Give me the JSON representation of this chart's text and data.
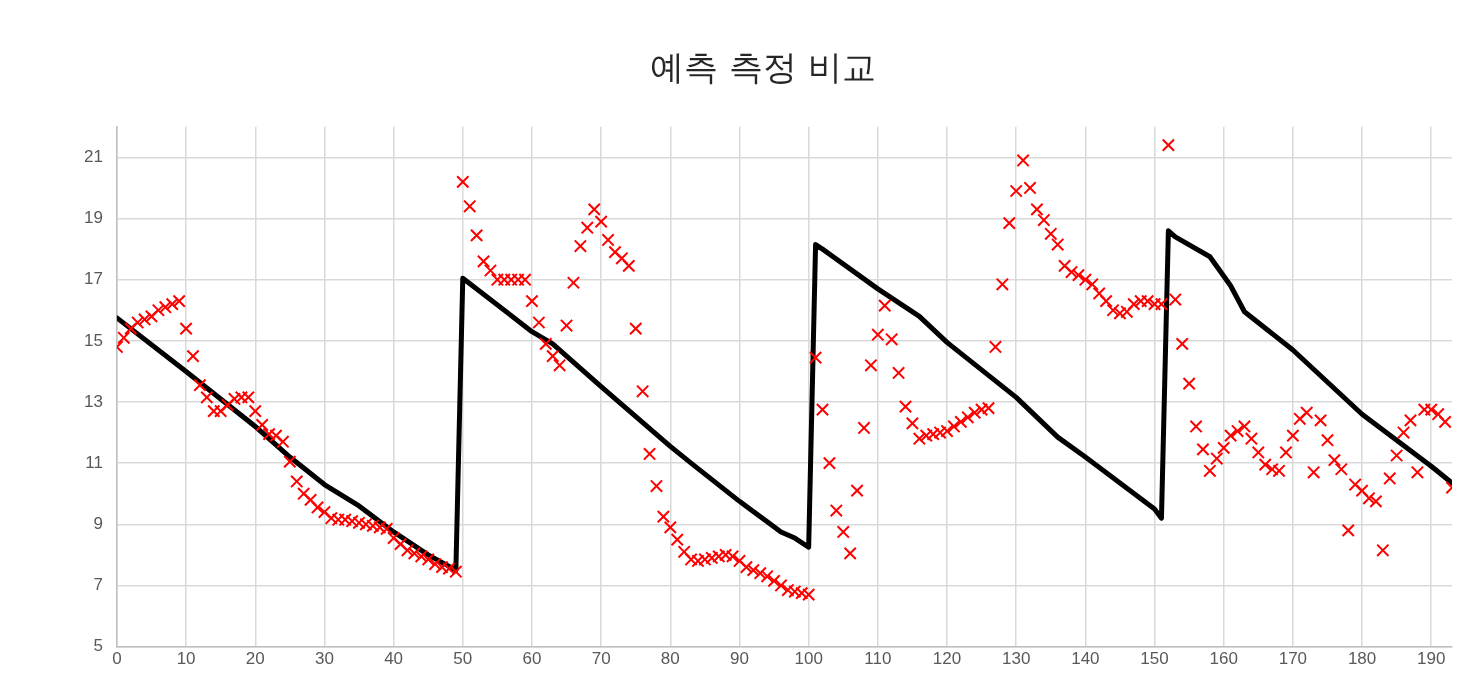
{
  "chart_data": {
    "type": "scatter",
    "title": "예측 측정 비교",
    "xlim": [
      0,
      193
    ],
    "xticks": [
      0,
      10,
      20,
      30,
      40,
      50,
      60,
      70,
      80,
      90,
      100,
      110,
      120,
      130,
      140,
      150,
      160,
      170,
      180,
      190
    ],
    "ylim": [
      5,
      22
    ],
    "yticks": [
      5,
      7,
      9,
      11,
      13,
      15,
      17,
      19,
      21
    ],
    "grid": true,
    "legend": false,
    "series": [
      {
        "type": "scatter",
        "color": "#ff0000",
        "marker": "cross",
        "x": [
          0,
          1,
          2,
          3,
          4,
          5,
          6,
          7,
          8,
          9,
          10,
          11,
          12,
          13,
          14,
          15,
          16,
          17,
          18,
          19,
          20,
          21,
          22,
          23,
          24,
          25,
          26,
          27,
          28,
          29,
          30,
          31,
          32,
          33,
          34,
          35,
          36,
          37,
          38,
          39,
          40,
          41,
          42,
          43,
          44,
          45,
          46,
          47,
          48,
          49,
          50,
          51,
          52,
          53,
          54,
          55,
          56,
          57,
          58,
          59,
          60,
          61,
          62,
          63,
          64,
          65,
          66,
          67,
          68,
          69,
          70,
          71,
          72,
          73,
          74,
          75,
          76,
          77,
          78,
          79,
          80,
          81,
          82,
          83,
          84,
          85,
          86,
          87,
          88,
          89,
          90,
          91,
          92,
          93,
          94,
          95,
          96,
          97,
          98,
          99,
          100,
          101,
          102,
          103,
          104,
          105,
          106,
          107,
          108,
          109,
          110,
          111,
          112,
          113,
          114,
          115,
          116,
          117,
          118,
          119,
          120,
          121,
          122,
          123,
          124,
          125,
          126,
          127,
          128,
          129,
          130,
          131,
          132,
          133,
          134,
          135,
          136,
          137,
          138,
          139,
          140,
          141,
          142,
          143,
          144,
          145,
          146,
          147,
          148,
          149,
          150,
          151,
          152,
          153,
          154,
          155,
          156,
          157,
          158,
          159,
          160,
          161,
          162,
          163,
          164,
          165,
          166,
          167,
          168,
          169,
          170,
          171,
          172,
          173,
          174,
          175,
          176,
          177,
          178,
          179,
          180,
          181,
          182,
          183,
          184,
          185,
          186,
          187,
          188,
          189,
          190,
          191,
          192,
          193
        ],
        "values": [
          14.8,
          15.1,
          15.4,
          15.6,
          15.7,
          15.8,
          16.0,
          16.1,
          16.2,
          16.3,
          15.4,
          14.5,
          13.55,
          13.15,
          12.7,
          12.7,
          12.9,
          13.1,
          13.15,
          13.15,
          12.7,
          12.25,
          11.95,
          11.9,
          11.7,
          11.05,
          10.4,
          10.0,
          9.8,
          9.55,
          9.4,
          9.2,
          9.15,
          9.15,
          9.1,
          9.05,
          9.0,
          8.95,
          8.9,
          8.85,
          8.55,
          8.35,
          8.15,
          8.05,
          7.95,
          7.85,
          7.7,
          7.6,
          7.55,
          7.45,
          20.2,
          19.4,
          18.45,
          17.6,
          17.3,
          17.0,
          17.0,
          17.0,
          17.0,
          17.0,
          16.3,
          15.6,
          14.9,
          14.5,
          14.2,
          15.5,
          16.9,
          18.1,
          18.7,
          19.3,
          18.9,
          18.3,
          17.9,
          17.7,
          17.45,
          15.4,
          13.35,
          11.3,
          10.25,
          9.25,
          8.9,
          8.5,
          8.1,
          7.85,
          7.8,
          7.85,
          7.9,
          7.95,
          8.0,
          7.95,
          7.8,
          7.6,
          7.5,
          7.4,
          7.3,
          7.15,
          7.0,
          6.85,
          6.8,
          6.75,
          6.7,
          14.45,
          12.75,
          11.0,
          9.45,
          8.75,
          8.05,
          10.1,
          12.15,
          14.2,
          15.2,
          16.15,
          15.05,
          13.95,
          12.85,
          12.3,
          11.8,
          11.9,
          11.95,
          12.0,
          12.05,
          12.2,
          12.35,
          12.5,
          12.65,
          12.75,
          12.8,
          14.8,
          16.85,
          18.85,
          19.9,
          20.9,
          20.0,
          19.3,
          18.95,
          18.5,
          18.15,
          17.45,
          17.25,
          17.15,
          17.0,
          16.85,
          16.55,
          16.3,
          16.0,
          15.9,
          15.95,
          16.2,
          16.3,
          16.3,
          16.2,
          16.2,
          21.4,
          16.35,
          14.9,
          13.6,
          12.2,
          11.45,
          10.75,
          11.15,
          11.5,
          11.9,
          12.05,
          12.2,
          11.8,
          11.35,
          10.95,
          10.8,
          10.75,
          11.35,
          11.9,
          12.45,
          12.65,
          10.7,
          12.4,
          11.75,
          11.1,
          10.8,
          8.8,
          10.3,
          10.1,
          9.85,
          9.75,
          8.15,
          10.5,
          11.25,
          12.0,
          12.4,
          10.7,
          12.75,
          12.75,
          12.6,
          12.35,
          10.2
        ]
      },
      {
        "type": "line",
        "color": "#000000",
        "marker": "none",
        "line_style": "solid",
        "x": [
          0,
          10,
          20,
          25,
          30,
          35,
          40,
          45,
          49,
          50,
          60,
          63,
          70,
          80,
          83,
          90,
          96,
          98,
          100,
          101,
          102,
          110,
          116,
          120,
          130,
          136,
          140,
          150,
          151,
          152,
          153,
          158,
          161,
          163,
          170,
          180,
          190,
          193
        ],
        "values": [
          15.75,
          14.0,
          12.2,
          11.2,
          10.3,
          9.6,
          8.75,
          8.0,
          7.5,
          17.05,
          15.3,
          14.9,
          13.5,
          11.55,
          11.0,
          9.75,
          8.75,
          8.55,
          8.25,
          18.15,
          18.0,
          16.7,
          15.8,
          14.95,
          13.15,
          11.85,
          11.2,
          9.5,
          9.2,
          18.6,
          18.4,
          17.75,
          16.8,
          15.95,
          14.7,
          12.6,
          10.9,
          10.35
        ]
      }
    ]
  }
}
